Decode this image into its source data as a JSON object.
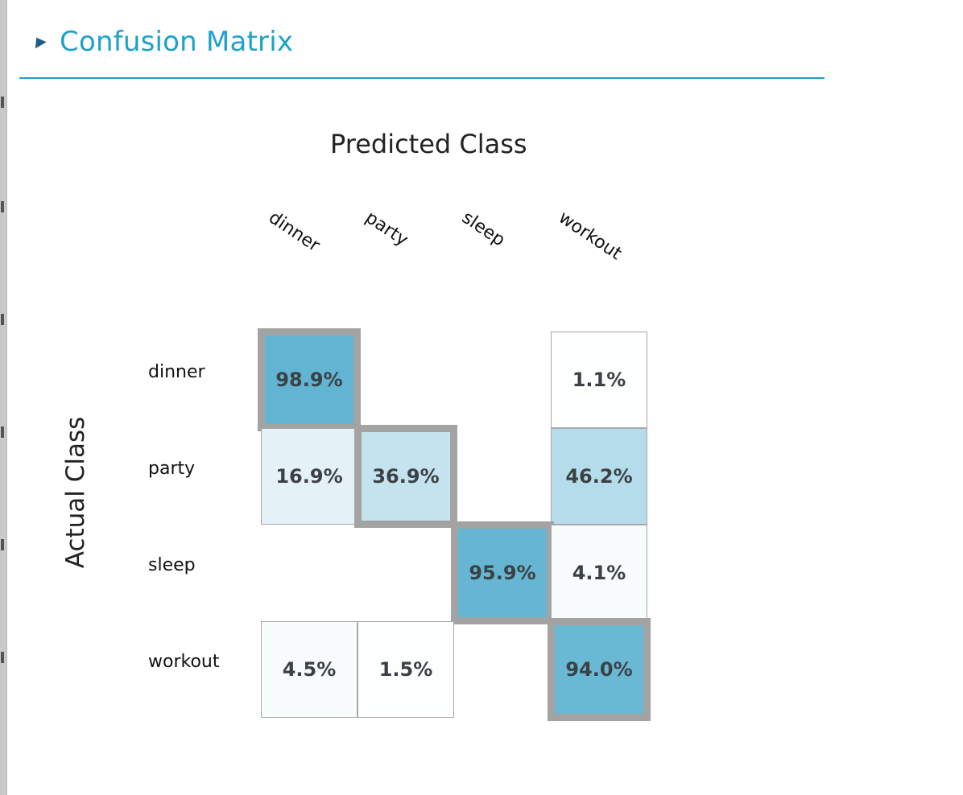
{
  "panel": {
    "title": "Confusion Matrix"
  },
  "chart_data": {
    "type": "heatmap",
    "title": "",
    "xlabel": "Predicted Class",
    "ylabel": "Actual Class",
    "columns": [
      "dinner",
      "party",
      "sleep",
      "workout"
    ],
    "rows": [
      "dinner",
      "party",
      "sleep",
      "workout"
    ],
    "values": [
      [
        98.9,
        null,
        null,
        1.1
      ],
      [
        16.9,
        36.9,
        null,
        46.2
      ],
      [
        null,
        null,
        95.9,
        4.1
      ],
      [
        4.5,
        1.5,
        null,
        94.0
      ]
    ],
    "labels": [
      [
        "98.9%",
        "",
        "",
        "1.1%"
      ],
      [
        "16.9%",
        "36.9%",
        "",
        "46.2%"
      ],
      [
        "",
        "",
        "95.9%",
        "4.1%"
      ],
      [
        "4.5%",
        "1.5%",
        "",
        "94.0%"
      ]
    ],
    "unit": "%",
    "highlight_diagonal": true,
    "colors": {
      "high": "#5fb3d1",
      "low": "#ffffff",
      "diagonal_border": "#a3a3a3"
    }
  }
}
